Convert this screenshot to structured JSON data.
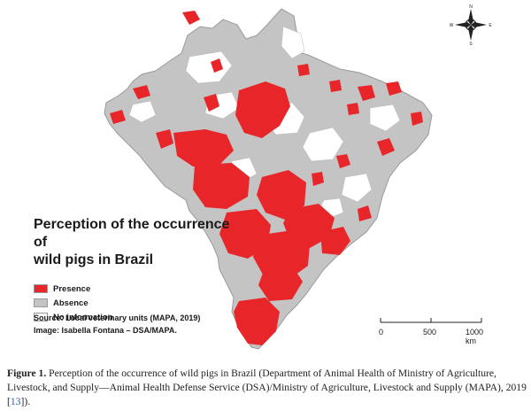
{
  "map": {
    "legend_title_line1": "Perception of the occurrence of",
    "legend_title_line2": "wild pigs in Brazil",
    "legend": [
      {
        "label": "Presence",
        "color": "#e8262a"
      },
      {
        "label": "Absence",
        "color": "#c4c4c4"
      },
      {
        "label": "No information",
        "color": "#ffffff"
      }
    ],
    "source_line": "Source: Local veterinary units (MAPA, 2019)",
    "image_line": "Image: Isabella Fontana – DSA/MAPA.",
    "scale": {
      "ticks": [
        "0",
        "500",
        "1000 km"
      ]
    },
    "compass": {
      "n": "N",
      "s": "S",
      "e": "E",
      "w": "W"
    }
  },
  "caption": {
    "label": "Figure 1.",
    "text": " Perception of the occurrence of wild pigs in Brazil (Department of Animal Health of Ministry of Agriculture, Livestock, and Supply—Animal Health Defense Service (DSA)/Ministry of Agriculture, Livestock and Supply (MAPA), 2019 [",
    "ref": "13",
    "end": "])."
  }
}
